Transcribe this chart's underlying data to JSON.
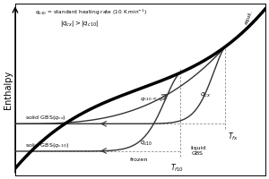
{
  "ylabel": "Enthalpy",
  "bg_color": "#ffffff",
  "tfx": 0.82,
  "tf10": 0.62,
  "equil_label": "equil.",
  "qcx_label": "q_{cx}",
  "qc10_label": "q_{c10}",
  "qh10_label": "q_{h10} < q_{cx}",
  "top_label1": "q_{h10} = standard heating rate (10 K min⁻¹)",
  "top_label2": "|q_{cx}| > |q_{c10}|",
  "solid_gbs_qcx": "solid GBS(q_{cx})",
  "solid_gbs_qc10": "solid GBS(q_{c10})",
  "frozen_label": "frozen",
  "Tfx_label": "T_{fx}",
  "Tf10_label": "T_{f10}",
  "liquid_gbs_label": "liquid\nGBS"
}
